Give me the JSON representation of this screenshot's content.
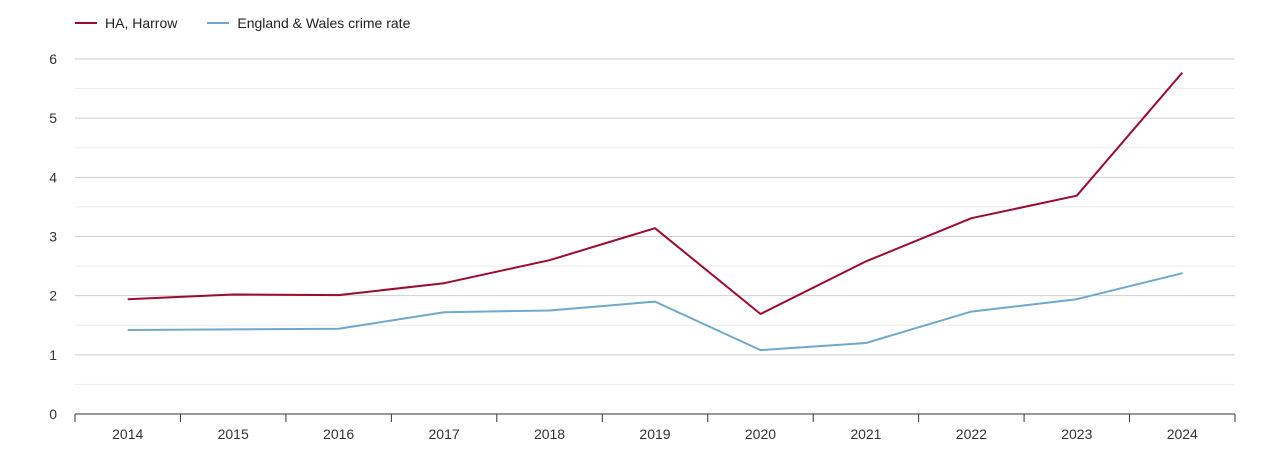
{
  "colors": {
    "series_1": "#9b0a2f",
    "series_2": "#6fa8cc",
    "grid_major": "#cfcfcf",
    "grid_minor": "#ececec",
    "axis": "#333333",
    "text": "#333333"
  },
  "chart_data": {
    "type": "line",
    "title": "",
    "xlabel": "",
    "ylabel": "",
    "categories": [
      "2014",
      "2015",
      "2016",
      "2017",
      "2018",
      "2019",
      "2020",
      "2021",
      "2022",
      "2023",
      "2024"
    ],
    "ylim": [
      0,
      6
    ],
    "yticks": [
      "0",
      "1",
      "2",
      "3",
      "4",
      "5",
      "6"
    ],
    "grid": true,
    "legend_position": "top-left",
    "series": [
      {
        "name": "HA, Harrow",
        "color": "#9b0a2f",
        "values": [
          1.94,
          2.02,
          2.01,
          2.21,
          2.6,
          3.14,
          1.69,
          2.58,
          3.31,
          3.69,
          5.77
        ]
      },
      {
        "name": "England & Wales crime rate",
        "color": "#6fa8cc",
        "values": [
          1.42,
          1.43,
          1.44,
          1.72,
          1.75,
          1.9,
          1.08,
          1.2,
          1.73,
          1.94,
          2.38
        ]
      }
    ]
  }
}
